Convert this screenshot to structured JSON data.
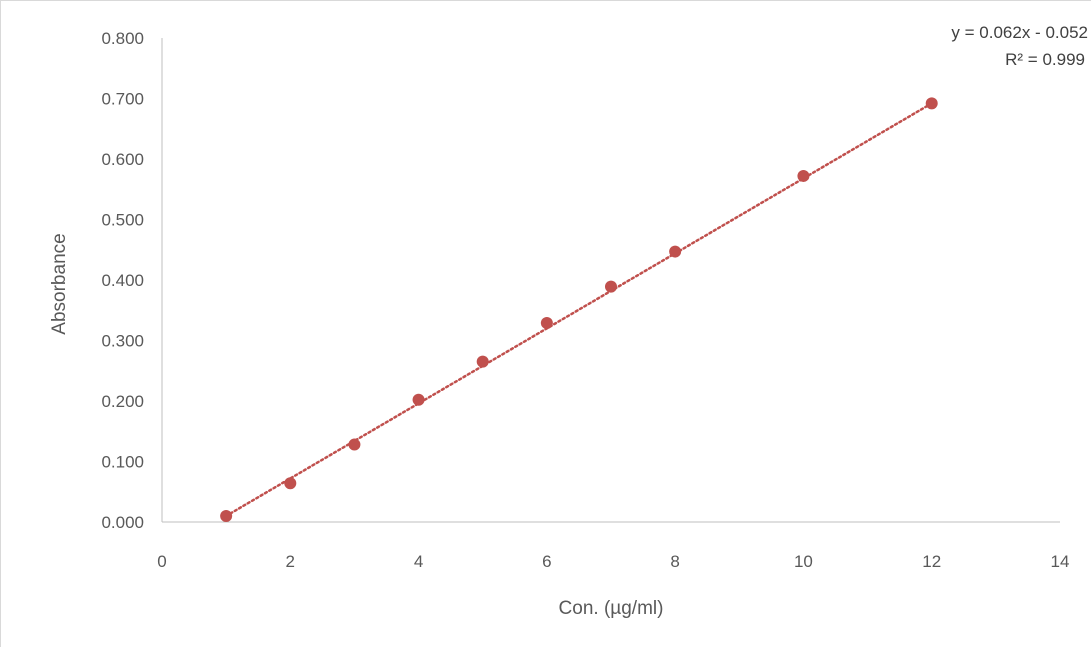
{
  "chart_data": {
    "type": "scatter",
    "title": "",
    "xlabel": "Con. (µg/ml)",
    "ylabel": "Absorbance",
    "xlim": [
      0,
      14
    ],
    "ylim": [
      0,
      0.8
    ],
    "x_ticks": [
      "0",
      "2",
      "4",
      "6",
      "8",
      "10",
      "12",
      "14"
    ],
    "y_ticks": [
      "0.000",
      "0.100",
      "0.200",
      "0.300",
      "0.400",
      "0.500",
      "0.600",
      "0.700",
      "0.800"
    ],
    "grid": false,
    "legend": "none",
    "series": [
      {
        "x": [
          1,
          2,
          3,
          4,
          5,
          6,
          7,
          8,
          10,
          12
        ],
        "y": [
          0.01,
          0.064,
          0.128,
          0.202,
          0.265,
          0.329,
          0.389,
          0.447,
          0.572,
          0.692
        ],
        "color": "#c0504d"
      }
    ],
    "trendline": {
      "type": "linear",
      "style": "dotted",
      "color": "#c0504d",
      "slope": 0.062,
      "intercept": -0.052,
      "x_range": [
        1,
        12
      ],
      "equation_label": "y = 0.062x - 0.052",
      "r2_label": "R² = 0.999"
    }
  }
}
